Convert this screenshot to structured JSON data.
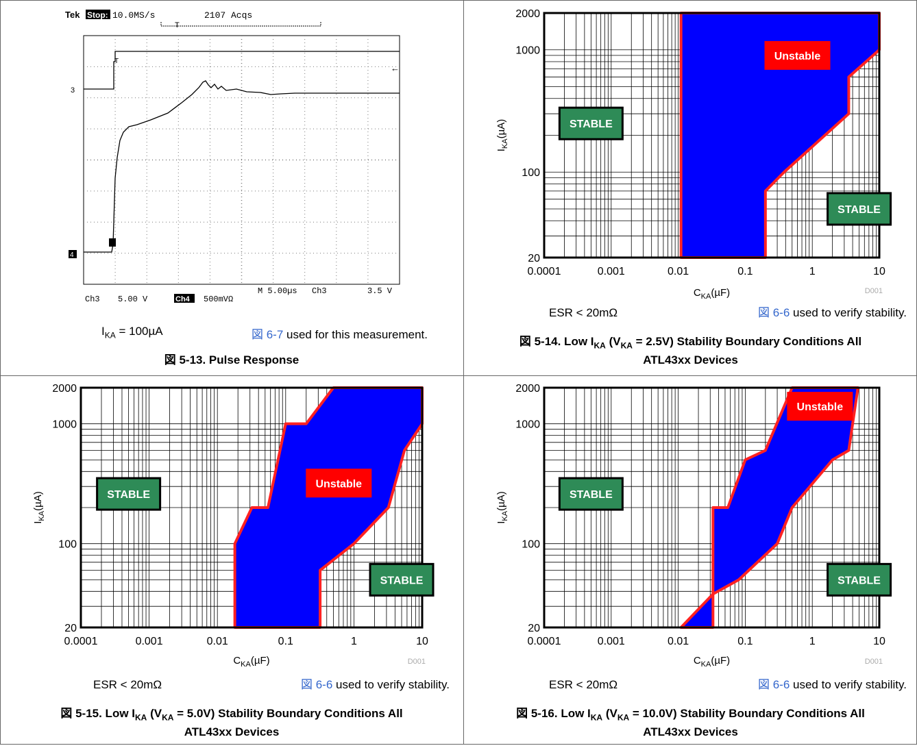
{
  "colors": {
    "unstable_fill": "#0000ff",
    "boundary": "#ff2222",
    "stable_box": "#2e8b57",
    "unstable_box": "#ff0000",
    "link": "#3366cc"
  },
  "scope": {
    "header_tek": "Tek",
    "header_mode": "Stop:",
    "header_rate": "10.0MS/s",
    "header_acqs": "2107 Acqs",
    "trigger_marker": "T",
    "ch3_marker": "3",
    "ch4_marker": "4",
    "footer_ch3": "Ch3",
    "footer_ch3_scale": "5.00 V",
    "footer_ch4": "Ch4",
    "footer_ch4_scale": "500mVΩ",
    "footer_time": "M 5.00µs",
    "footer_trig_src": "Ch3",
    "footer_trig_level": "3.5 V",
    "note_left_main": "I",
    "note_left_sub": "KA",
    "note_left_rest": " = 100µA",
    "note_right_link": "図 6-7",
    "note_right_rest": " used for this measurement.",
    "caption": "図 5-13. Pulse Response"
  },
  "charts_common": {
    "y_ticks": [
      "20",
      "100",
      "1000",
      "2000"
    ],
    "x_ticks": [
      "0.0001",
      "0.001",
      "0.01",
      "0.1",
      "1",
      "10"
    ],
    "ylabel_main": "I",
    "ylabel_sub": "KA",
    "ylabel_rest": "(µA)",
    "xlabel_main": "C",
    "xlabel_sub": "KA",
    "xlabel_rest": "(µF)",
    "code": "D001",
    "esr_note": "ESR < 20mΩ",
    "verify_link": "図 6-6",
    "verify_rest": " used to verify stability.",
    "stable_label": "STABLE",
    "unstable_label": "Unstable"
  },
  "captions": {
    "fig14_a": "図 5-14. Low I",
    "fig14_sub1": "KA",
    "fig14_b": " (V",
    "fig14_sub2": "KA",
    "fig14_c": " = 2.5V) Stability Boundary Conditions All",
    "fig14_d": "ATL43xx Devices",
    "fig15_a": "図 5-15. Low I",
    "fig15_sub1": "KA",
    "fig15_b": " (V",
    "fig15_sub2": "KA",
    "fig15_c": " = 5.0V) Stability Boundary Conditions All",
    "fig15_d": "ATL43xx Devices",
    "fig16_a": "図 5-16. Low I",
    "fig16_sub1": "KA",
    "fig16_b": " (V",
    "fig16_sub2": "KA",
    "fig16_c": " = 10.0V) Stability Boundary Conditions All",
    "fig16_d": "ATL43xx Devices"
  },
  "chart_data": [
    {
      "type": "area",
      "title": "図 5-14. Low IKA (VKA = 2.5V) Stability Boundary Conditions All ATL43xx Devices",
      "xlabel": "CKA(µF)",
      "ylabel": "IKA(µA)",
      "xscale": "log",
      "yscale": "log",
      "xlim": [
        0.0001,
        10
      ],
      "ylim": [
        20,
        2000
      ],
      "grid": true,
      "unstable_region": [
        [
          0.011,
          20
        ],
        [
          0.011,
          2000
        ],
        [
          10,
          2000
        ],
        [
          10,
          1000
        ],
        [
          3.5,
          600
        ],
        [
          3.5,
          300
        ],
        [
          0.38,
          100
        ],
        [
          0.2,
          70
        ],
        [
          0.2,
          20
        ]
      ],
      "labels": [
        {
          "text": "STABLE",
          "x": 0.0005,
          "y": 250
        },
        {
          "text": "STABLE",
          "x": 5,
          "y": 50
        },
        {
          "text": "Unstable",
          "x": 0.6,
          "y": 900
        }
      ]
    },
    {
      "type": "area",
      "title": "図 5-15. Low IKA (VKA = 5.0V) Stability Boundary Conditions All ATL43xx Devices",
      "xlabel": "CKA(µF)",
      "ylabel": "IKA(µA)",
      "xscale": "log",
      "yscale": "log",
      "xlim": [
        0.0001,
        10
      ],
      "ylim": [
        20,
        2000
      ],
      "grid": true,
      "unstable_region": [
        [
          0.018,
          20
        ],
        [
          0.018,
          100
        ],
        [
          0.032,
          200
        ],
        [
          0.055,
          200
        ],
        [
          0.1,
          1000
        ],
        [
          0.2,
          1000
        ],
        [
          0.5,
          2000
        ],
        [
          10,
          2000
        ],
        [
          10,
          1000
        ],
        [
          5.5,
          600
        ],
        [
          3.2,
          200
        ],
        [
          1,
          100
        ],
        [
          0.32,
          60
        ],
        [
          0.32,
          20
        ]
      ],
      "labels": [
        {
          "text": "STABLE",
          "x": 0.0005,
          "y": 260
        },
        {
          "text": "STABLE",
          "x": 5,
          "y": 50
        },
        {
          "text": "Unstable",
          "x": 0.6,
          "y": 320
        }
      ]
    },
    {
      "type": "area",
      "title": "図 5-16. Low IKA (VKA = 10.0V) Stability Boundary Conditions All ATL43xx Devices",
      "xlabel": "CKA(µF)",
      "ylabel": "IKA(µA)",
      "xscale": "log",
      "yscale": "log",
      "xlim": [
        0.0001,
        10
      ],
      "ylim": [
        20,
        2000
      ],
      "grid": true,
      "unstable_region": [
        [
          0.011,
          20
        ],
        [
          0.033,
          38
        ],
        [
          0.033,
          200
        ],
        [
          0.055,
          200
        ],
        [
          0.1,
          500
        ],
        [
          0.2,
          600
        ],
        [
          0.5,
          2000
        ],
        [
          4.8,
          2000
        ],
        [
          3.5,
          600
        ],
        [
          2,
          500
        ],
        [
          0.5,
          200
        ],
        [
          0.3,
          100
        ],
        [
          0.08,
          50
        ],
        [
          0.033,
          38
        ],
        [
          0.033,
          20
        ]
      ],
      "labels": [
        {
          "text": "STABLE",
          "x": 0.0005,
          "y": 260
        },
        {
          "text": "STABLE",
          "x": 5,
          "y": 50
        },
        {
          "text": "Unstable",
          "x": 1.3,
          "y": 1400
        }
      ]
    }
  ]
}
